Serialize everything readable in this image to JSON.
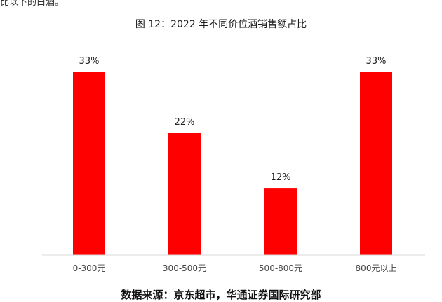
{
  "top_text": "比以下的白酒。",
  "figure_title": "图 12：2022 年不同价位酒销售额占比",
  "source_note": "数据来源：京东超市，华通证券国际研究部",
  "chart_data": {
    "type": "bar",
    "title": "图 12：2022 年不同价位酒销售额占比",
    "categories": [
      "0-300元",
      "300-500元",
      "500-800元",
      "800元以上"
    ],
    "values": [
      33,
      22,
      12,
      33
    ],
    "data_labels": [
      "33%",
      "22%",
      "12%",
      "33%"
    ],
    "xlabel": "",
    "ylabel": "",
    "ylim": [
      0,
      33
    ],
    "grid": false,
    "legend": "none",
    "bar_color": "#ff0000",
    "axis_color": "#d9d9d9"
  }
}
